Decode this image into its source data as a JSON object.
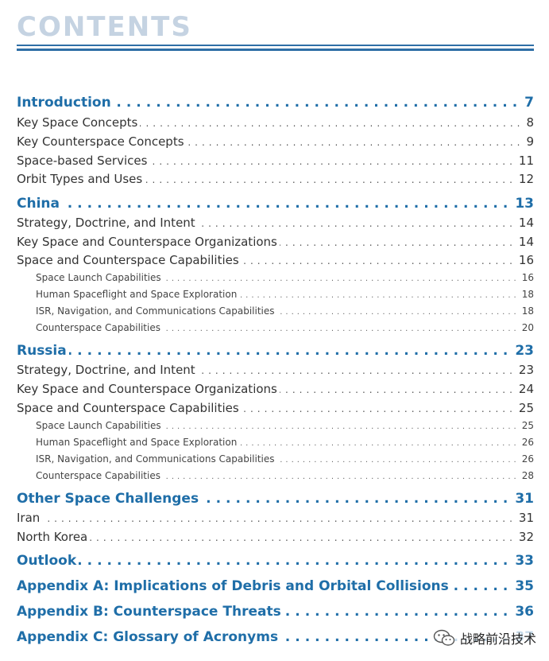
{
  "title": "CONTENTS",
  "entries": [
    {
      "level": 1,
      "label": "Introduction",
      "page": "7"
    },
    {
      "level": 2,
      "label": "Key Space Concepts",
      "page": "8"
    },
    {
      "level": 2,
      "label": "Key Counterspace Concepts",
      "page": "9"
    },
    {
      "level": 2,
      "label": "Space-based Services",
      "page": "11"
    },
    {
      "level": 2,
      "label": "Orbit Types and Uses",
      "page": "12"
    },
    {
      "level": 1,
      "label": "China",
      "page": "13"
    },
    {
      "level": 2,
      "label": "Strategy, Doctrine, and Intent",
      "page": "14"
    },
    {
      "level": 2,
      "label": "Key Space and Counterspace Organizations",
      "page": "14"
    },
    {
      "level": 2,
      "label": "Space and Counterspace Capabilities",
      "page": "16"
    },
    {
      "level": 3,
      "label": "Space Launch Capabilities",
      "page": "16"
    },
    {
      "level": 3,
      "label": "Human Spaceflight and Space Exploration",
      "page": "18"
    },
    {
      "level": 3,
      "label": "ISR, Navigation, and Communications Capabilities",
      "page": "18"
    },
    {
      "level": 3,
      "label": "Counterspace Capabilities",
      "page": "20"
    },
    {
      "level": 1,
      "label": "Russia",
      "page": "23"
    },
    {
      "level": 2,
      "label": "Strategy, Doctrine, and Intent",
      "page": "23"
    },
    {
      "level": 2,
      "label": "Key Space and Counterspace Organizations",
      "page": "24"
    },
    {
      "level": 2,
      "label": "Space and Counterspace Capabilities",
      "page": "25"
    },
    {
      "level": 3,
      "label": "Space Launch Capabilities",
      "page": "25"
    },
    {
      "level": 3,
      "label": "Human Spaceflight and Space Exploration",
      "page": "26"
    },
    {
      "level": 3,
      "label": "ISR, Navigation, and Communications Capabilities",
      "page": "26"
    },
    {
      "level": 3,
      "label": "Counterspace Capabilities",
      "page": "28"
    },
    {
      "level": 1,
      "label": "Other Space Challenges",
      "page": "31"
    },
    {
      "level": 2,
      "label": "Iran",
      "page": "31"
    },
    {
      "level": 2,
      "label": "North Korea",
      "page": "32"
    },
    {
      "level": 1,
      "label": "Outlook",
      "page": "33"
    },
    {
      "level": 1,
      "label": "Appendix A: Implications of Debris and Orbital Collisions",
      "page": "35"
    },
    {
      "level": 1,
      "label": "Appendix B: Counterspace Threats",
      "page": "36"
    },
    {
      "level": 1,
      "label": "Appendix C: Glossary of Acronyms",
      "page": "37"
    }
  ],
  "watermark": {
    "text": "战略前沿技术",
    "icon": "wechat-icon"
  },
  "colors": {
    "heading": "#1f6ea8",
    "title": "#c5d3e2",
    "rule": "#2f6fa6"
  }
}
